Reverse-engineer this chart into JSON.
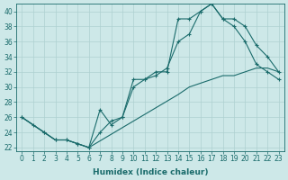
{
  "xlabel": "Humidex (Indice chaleur)",
  "ylabel": "",
  "xlim": [
    -0.5,
    23.5
  ],
  "ylim": [
    21.5,
    41
  ],
  "xticks": [
    0,
    1,
    2,
    3,
    4,
    5,
    6,
    7,
    8,
    9,
    10,
    11,
    12,
    13,
    14,
    15,
    16,
    17,
    18,
    19,
    20,
    21,
    22,
    23
  ],
  "yticks": [
    22,
    24,
    26,
    28,
    30,
    32,
    34,
    36,
    38,
    40
  ],
  "background_color": "#cde8e8",
  "line_color": "#1a6b6b",
  "line1_x": [
    0,
    1,
    2,
    3,
    4,
    5,
    6,
    7,
    8,
    9,
    10,
    11,
    12,
    13,
    14,
    15,
    16,
    17,
    18,
    19,
    20,
    21,
    22,
    23
  ],
  "line1_y": [
    26,
    25,
    24,
    23,
    23,
    22.5,
    22,
    27,
    25,
    26,
    31,
    31,
    32,
    32,
    39,
    39,
    40,
    41,
    39,
    38,
    36,
    33,
    32,
    31
  ],
  "line2_x": [
    0,
    2,
    3,
    4,
    5,
    6,
    7,
    8,
    9,
    10,
    11,
    12,
    13,
    14,
    15,
    16,
    17,
    18,
    19,
    20,
    21,
    22,
    23
  ],
  "line2_y": [
    26,
    24,
    23,
    23,
    22.5,
    22,
    24,
    25.5,
    26,
    30,
    31,
    31.5,
    32.5,
    36,
    37,
    40,
    41,
    39,
    39,
    38,
    35.5,
    34,
    32
  ],
  "line3_x": [
    0,
    2,
    3,
    4,
    5,
    6,
    14,
    15,
    16,
    17,
    18,
    19,
    20,
    21,
    22,
    23
  ],
  "line3_y": [
    26,
    24,
    23,
    23,
    22.5,
    22,
    29,
    30,
    30.5,
    31,
    31.5,
    31.5,
    32,
    32.5,
    32.5,
    32
  ],
  "grid_color": "#aed0d0",
  "font_color": "#1a6b6b",
  "font_size": 6.5,
  "marker_size": 2.5,
  "line_width": 0.8
}
